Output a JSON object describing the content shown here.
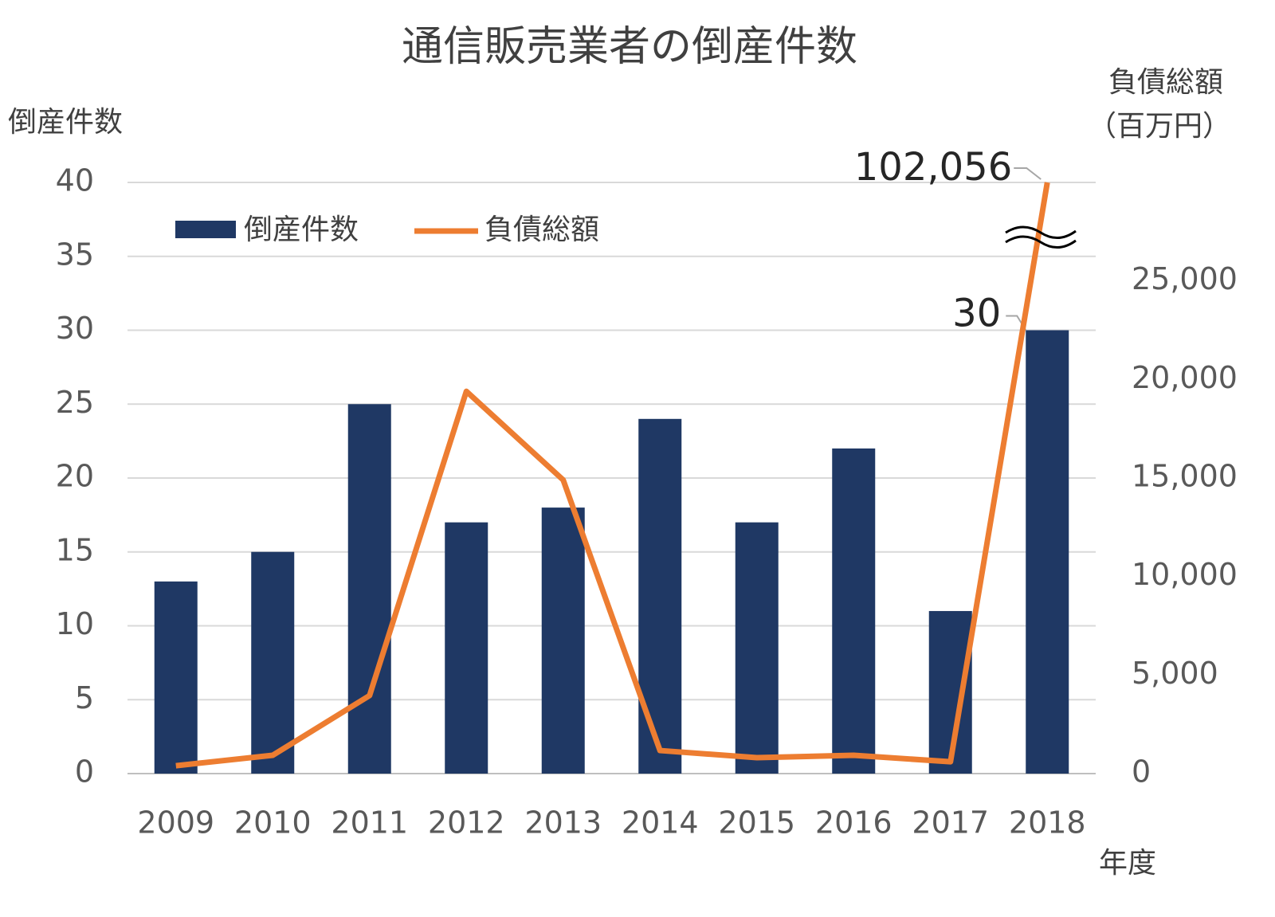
{
  "chart_data": {
    "type": "bar_line",
    "title": "通信販売業者の倒産件数",
    "y_label": "倒産件数",
    "y2_label": [
      "負債総額",
      "（百万円）"
    ],
    "x_label": "年度",
    "categories": [
      "2009",
      "2010",
      "2011",
      "2012",
      "2013",
      "2014",
      "2015",
      "2016",
      "2017",
      "2018"
    ],
    "series": [
      {
        "name": "倒産件数",
        "type": "bar",
        "color": "#1f3864",
        "values": [
          13,
          15,
          25,
          17,
          18,
          24,
          17,
          22,
          11,
          30
        ],
        "value_labels": [
          null,
          null,
          null,
          null,
          null,
          null,
          null,
          null,
          null,
          "30"
        ]
      },
      {
        "name": "負債総額",
        "type": "line",
        "axis": "y2",
        "color": "#ed7d31",
        "values": [
          400,
          930,
          3960,
          19400,
          14900,
          1170,
          810,
          930,
          600,
          102056
        ],
        "value_labels": [
          null,
          null,
          null,
          null,
          null,
          null,
          null,
          null,
          null,
          "102,056"
        ]
      }
    ],
    "ylim": [
      0,
      40
    ],
    "yticks": [
      0,
      5,
      10,
      15,
      20,
      25,
      30,
      35,
      40
    ],
    "y2lim": [
      0,
      30000
    ],
    "y2ticks": [
      0,
      {
        "value": 5000,
        "label": "5,000"
      },
      {
        "value": 10000,
        "label": "10,000"
      },
      {
        "value": 15000,
        "label": "15,000"
      },
      {
        "value": 20000,
        "label": "20,000"
      },
      {
        "value": 25000,
        "label": "25,000"
      }
    ],
    "y2_break": true,
    "grid": true,
    "legend": "top-left"
  }
}
